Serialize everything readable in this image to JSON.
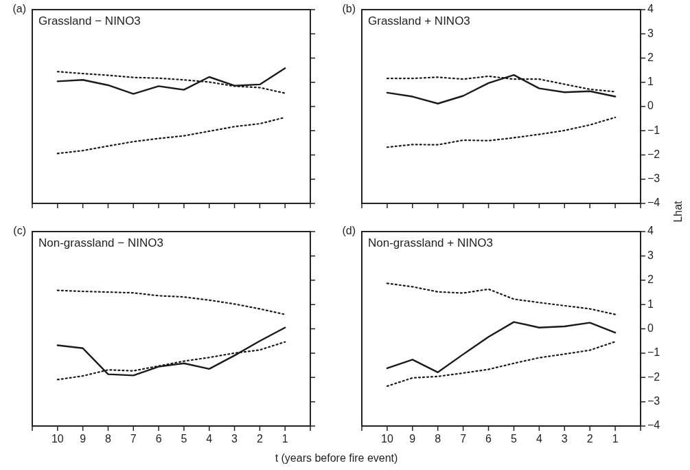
{
  "chart_data": [
    {
      "type": "line",
      "title": "Grassland − NINO3",
      "annotations": [
        "(a)"
      ],
      "x": [
        10,
        9,
        8,
        7,
        6,
        5,
        4,
        3,
        2,
        1
      ],
      "xlim": [
        11,
        0
      ],
      "xticks": [
        10,
        9,
        8,
        7,
        6,
        5,
        4,
        3,
        2,
        1
      ],
      "ylim": [
        -4,
        4
      ],
      "yticks": [
        -4,
        -3,
        -2,
        -1,
        0,
        1,
        2,
        3,
        4
      ],
      "tick_labels": false,
      "grid": false,
      "legend": false,
      "marker": "none",
      "series": [
        {
          "color": "#1a1a1a",
          "line_style": "solid",
          "values": [
            1.04,
            1.1,
            0.88,
            0.52,
            0.84,
            0.69,
            1.22,
            0.86,
            0.91,
            1.58
          ]
        },
        {
          "color": "#1a1a1a",
          "line_style": "dotted",
          "values": [
            1.44,
            1.36,
            1.29,
            1.2,
            1.17,
            1.1,
            1.01,
            0.84,
            0.78,
            0.55
          ]
        },
        {
          "color": "#1a1a1a",
          "line_style": "dotted",
          "values": [
            -1.94,
            -1.82,
            -1.63,
            -1.45,
            -1.32,
            -1.21,
            -1.02,
            -0.83,
            -0.71,
            -0.45
          ]
        }
      ]
    },
    {
      "type": "line",
      "title": "Grassland + NINO3",
      "annotations": [
        "(b)"
      ],
      "ylabel": "Lhat",
      "x": [
        10,
        9,
        8,
        7,
        6,
        5,
        4,
        3,
        2,
        1
      ],
      "xlim": [
        11,
        0
      ],
      "xticks": [
        10,
        9,
        8,
        7,
        6,
        5,
        4,
        3,
        2,
        1
      ],
      "ylim": [
        -4,
        4
      ],
      "yticks": [
        {
          "value": -4,
          "label": "−4"
        },
        {
          "value": -3,
          "label": "−3"
        },
        {
          "value": -2,
          "label": "−2"
        },
        {
          "value": -1,
          "label": "−1"
        },
        0,
        1,
        2,
        3,
        4
      ],
      "tick_labels": "y",
      "grid": false,
      "legend": false,
      "marker": "none",
      "series": [
        {
          "color": "#1a1a1a",
          "line_style": "solid",
          "values": [
            0.57,
            0.41,
            0.12,
            0.44,
            0.97,
            1.3,
            0.75,
            0.59,
            0.63,
            0.41
          ]
        },
        {
          "color": "#1a1a1a",
          "line_style": "dotted",
          "values": [
            1.16,
            1.16,
            1.21,
            1.13,
            1.25,
            1.13,
            1.13,
            0.92,
            0.71,
            0.61
          ]
        },
        {
          "color": "#1a1a1a",
          "line_style": "dotted",
          "values": [
            -1.68,
            -1.57,
            -1.58,
            -1.39,
            -1.41,
            -1.29,
            -1.15,
            -0.99,
            -0.76,
            -0.45
          ]
        }
      ]
    },
    {
      "type": "line",
      "title": "Non-grassland − NINO3",
      "annotations": [
        "(c)"
      ],
      "xlabel": "t (years before fire event)",
      "x": [
        10,
        9,
        8,
        7,
        6,
        5,
        4,
        3,
        2,
        1
      ],
      "xlim": [
        11,
        0
      ],
      "xticks": [
        10,
        9,
        8,
        7,
        6,
        5,
        4,
        3,
        2,
        1
      ],
      "ylim": [
        -4,
        4
      ],
      "yticks": [
        -4,
        -3,
        -2,
        -1,
        0,
        1,
        2,
        3,
        4
      ],
      "tick_labels": "x",
      "grid": false,
      "legend": false,
      "marker": "none",
      "series": [
        {
          "color": "#1a1a1a",
          "line_style": "solid",
          "values": [
            -0.68,
            -0.8,
            -1.87,
            -1.92,
            -1.56,
            -1.42,
            -1.65,
            -1.1,
            -0.5,
            0.05
          ]
        },
        {
          "color": "#1a1a1a",
          "line_style": "dotted",
          "values": [
            1.58,
            1.54,
            1.51,
            1.48,
            1.36,
            1.31,
            1.18,
            1.02,
            0.82,
            0.59
          ]
        },
        {
          "color": "#1a1a1a",
          "line_style": "dotted",
          "values": [
            -2.09,
            -1.94,
            -1.69,
            -1.73,
            -1.53,
            -1.33,
            -1.18,
            -1.0,
            -0.87,
            -0.54
          ]
        }
      ]
    },
    {
      "type": "line",
      "title": "Non-grassland + NINO3",
      "annotations": [
        "(d)"
      ],
      "x": [
        10,
        9,
        8,
        7,
        6,
        5,
        4,
        3,
        2,
        1
      ],
      "xlim": [
        11,
        0
      ],
      "xticks": [
        10,
        9,
        8,
        7,
        6,
        5,
        4,
        3,
        2,
        1
      ],
      "ylim": [
        -4,
        4
      ],
      "yticks": [
        {
          "value": -4,
          "label": "−4"
        },
        {
          "value": -3,
          "label": "−3"
        },
        {
          "value": -2,
          "label": "−2"
        },
        {
          "value": -1,
          "label": "−1"
        },
        0,
        1,
        2,
        3,
        4
      ],
      "grid": false,
      "legend": false,
      "marker": "none",
      "series": [
        {
          "color": "#1a1a1a",
          "line_style": "solid",
          "values": [
            -1.62,
            -1.27,
            -1.79,
            -1.05,
            -0.33,
            0.28,
            0.05,
            0.1,
            0.25,
            -0.16
          ]
        },
        {
          "color": "#1a1a1a",
          "line_style": "dotted",
          "values": [
            1.87,
            1.73,
            1.52,
            1.47,
            1.63,
            1.22,
            1.08,
            0.95,
            0.82,
            0.59
          ]
        },
        {
          "color": "#1a1a1a",
          "line_style": "dotted",
          "values": [
            -2.36,
            -2.02,
            -1.96,
            -1.82,
            -1.67,
            -1.42,
            -1.19,
            -1.04,
            -0.88,
            -0.53
          ]
        }
      ]
    }
  ]
}
